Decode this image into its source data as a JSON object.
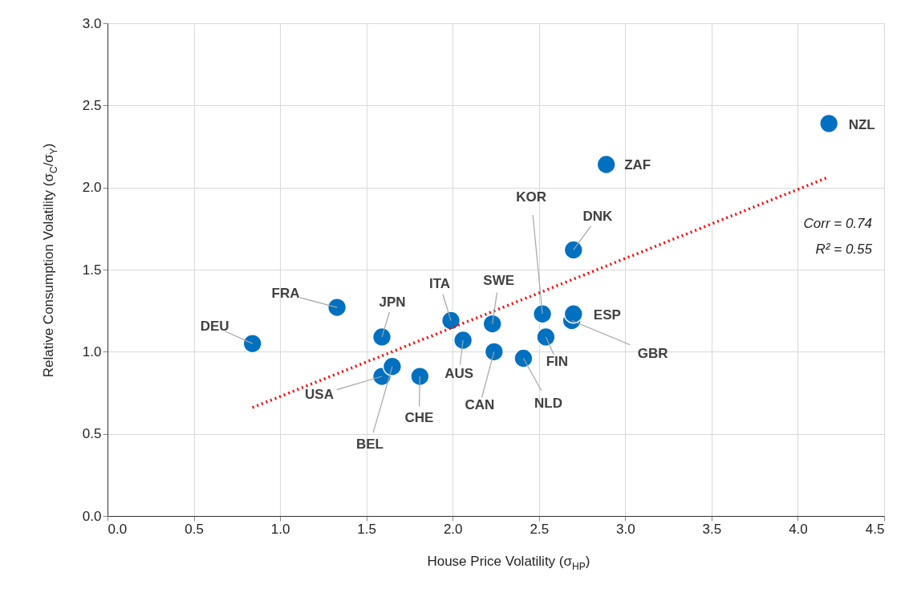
{
  "chart_data": {
    "type": "scatter",
    "xlabel": "House Price Volatility (σ$_{HP}$)",
    "ylabel": "Relative Consumption Volatility (σ$_{C}$/σ$_{Y}$)",
    "xlim": [
      0,
      4.5
    ],
    "xticks": [
      {
        "value": 0,
        "label": "0.0"
      },
      0.5,
      {
        "value": 1,
        "label": "1.0"
      },
      1.5,
      {
        "value": 2,
        "label": "2.0"
      },
      2.5,
      {
        "value": 3,
        "label": "3.0"
      },
      3.5,
      {
        "value": 4,
        "label": "4.0"
      },
      4.5
    ],
    "ylim": [
      0,
      3
    ],
    "yticks": [
      {
        "value": 0,
        "label": "0.0"
      },
      0.5,
      {
        "value": 1,
        "label": "1.0"
      },
      1.5,
      {
        "value": 2,
        "label": "2.0"
      },
      2.5,
      {
        "value": 3,
        "label": "3.0"
      }
    ],
    "grid": true,
    "marker": "circle",
    "series": [
      {
        "type": "scatter",
        "color": "#0070c0",
        "x": [
          0.84,
          1.33,
          1.59,
          1.59,
          1.65,
          1.81,
          1.99,
          2.06,
          2.23,
          2.24,
          2.41,
          2.52,
          2.54,
          2.7,
          2.69,
          2.7,
          2.89,
          4.18
        ],
        "values": [
          1.05,
          1.27,
          1.09,
          0.85,
          0.91,
          0.85,
          1.19,
          1.07,
          1.17,
          1.0,
          0.96,
          1.23,
          1.09,
          1.23,
          1.19,
          1.62,
          2.14,
          2.39
        ]
      },
      {
        "type": "line",
        "color": "#ff0000",
        "line_style": "dotted",
        "marker": "none",
        "x": [
          0.84,
          4.17
        ],
        "values": [
          0.66,
          2.06
        ]
      }
    ],
    "annotations": [
      {
        "text": "DEU",
        "x": 0.84,
        "y": 1.05
      },
      {
        "text": "FRA",
        "x": 1.33,
        "y": 1.27
      },
      {
        "text": "JPN",
        "x": 1.59,
        "y": 1.09
      },
      {
        "text": "USA",
        "x": 1.59,
        "y": 0.85
      },
      {
        "text": "BEL",
        "x": 1.65,
        "y": 0.91
      },
      {
        "text": "CHE",
        "x": 1.81,
        "y": 0.85
      },
      {
        "text": "ITA",
        "x": 1.99,
        "y": 1.19
      },
      {
        "text": "AUS",
        "x": 2.06,
        "y": 1.07
      },
      {
        "text": "SWE",
        "x": 2.23,
        "y": 1.17
      },
      {
        "text": "CAN",
        "x": 2.24,
        "y": 1.0
      },
      {
        "text": "NLD",
        "x": 2.41,
        "y": 0.96
      },
      {
        "text": "KOR",
        "x": 2.52,
        "y": 1.23
      },
      {
        "text": "FIN",
        "x": 2.54,
        "y": 1.09
      },
      {
        "text": "ESP",
        "x": 2.7,
        "y": 1.23
      },
      {
        "text": "GBR",
        "x": 2.69,
        "y": 1.19
      },
      {
        "text": "DNK",
        "x": 2.7,
        "y": 1.62
      },
      {
        "text": "ZAF",
        "x": 2.89,
        "y": 2.14
      },
      {
        "text": "NZL",
        "x": 4.18,
        "y": 2.39
      },
      "Corr = 0.74",
      "R² = 0.55"
    ]
  }
}
